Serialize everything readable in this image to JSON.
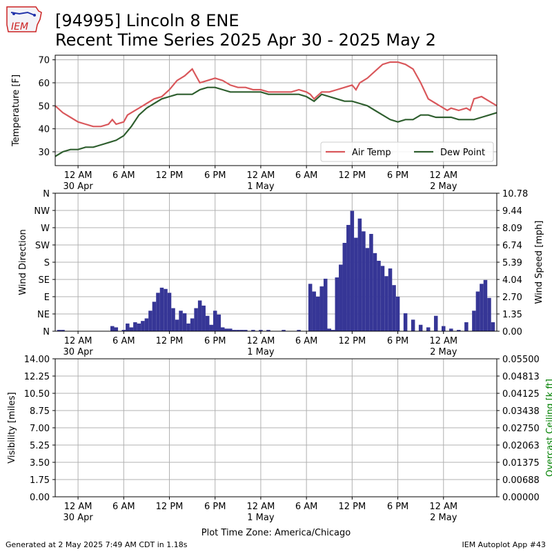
{
  "header": {
    "title_line1": "[94995] Lincoln 8 ENE",
    "title_line2": "Recent Time Series 2025 Apr 30 - 2025 May 2",
    "logo_text": "IEM"
  },
  "footer": {
    "generated": "Generated at 2 May 2025 7:49 AM CDT in 1.18s",
    "app": "IEM Autoplot App #43",
    "timezone_label": "Plot Time Zone: America/Chicago"
  },
  "colors": {
    "air_temp": "#d9575b",
    "dew_point": "#2e5e2e",
    "wind_bars": "#363696",
    "ceiling_axis": "#008000",
    "grid": "#b0b0b0"
  },
  "chart_data": [
    {
      "type": "line",
      "id": "temperature",
      "ylabel": "Temperature [F]",
      "ylim": [
        24,
        72
      ],
      "yticks": [
        30,
        40,
        50,
        60,
        70
      ],
      "x_unit": "hours since 2025-04-29 21:00",
      "xlim": [
        21,
        79
      ],
      "xticks": [
        {
          "x": 24,
          "label": "12 AM",
          "date": "30 Apr"
        },
        {
          "x": 30,
          "label": "6 AM",
          "date": ""
        },
        {
          "x": 36,
          "label": "12 PM",
          "date": ""
        },
        {
          "x": 42,
          "label": "6 PM",
          "date": ""
        },
        {
          "x": 48,
          "label": "12 AM",
          "date": "1 May"
        },
        {
          "x": 54,
          "label": "6 AM",
          "date": ""
        },
        {
          "x": 60,
          "label": "12 PM",
          "date": ""
        },
        {
          "x": 66,
          "label": "6 PM",
          "date": ""
        },
        {
          "x": 72,
          "label": "12 AM",
          "date": "2 May"
        }
      ],
      "grid": true,
      "legend": "lower-right",
      "series": [
        {
          "name": "Air Temp",
          "x": [
            21,
            22,
            23,
            24,
            25,
            26,
            27,
            28,
            28.5,
            29,
            30,
            30.5,
            31,
            32,
            33,
            34,
            35,
            36,
            37,
            38,
            39,
            39.5,
            40,
            41,
            42,
            43,
            44,
            45,
            46,
            47,
            48,
            49,
            50,
            51,
            52,
            53,
            54,
            54.5,
            55,
            56,
            57,
            58,
            59,
            60,
            60.5,
            61,
            62,
            63,
            64,
            65,
            66,
            67,
            68,
            69,
            70,
            71,
            72,
            72.5,
            73,
            74,
            75,
            75.5,
            76,
            77,
            78,
            79
          ],
          "y": [
            50,
            47,
            45,
            43,
            42,
            41,
            41,
            42,
            44,
            42,
            43,
            46,
            47,
            49,
            51,
            53,
            54,
            57,
            61,
            63,
            66,
            63,
            60,
            61,
            62,
            61,
            59,
            58,
            58,
            57,
            57,
            56,
            56,
            56,
            56,
            57,
            56,
            55,
            53,
            56,
            56,
            57,
            58,
            59,
            57,
            60,
            62,
            65,
            68,
            69,
            69,
            68,
            66,
            60,
            53,
            51,
            49,
            48,
            49,
            48,
            49,
            48,
            53,
            54,
            52,
            50
          ]
        },
        {
          "name": "Dew Point",
          "x": [
            21,
            22,
            23,
            24,
            25,
            26,
            27,
            28,
            29,
            30,
            31,
            32,
            33,
            34,
            35,
            36,
            37,
            38,
            39,
            40,
            41,
            42,
            43,
            44,
            45,
            46,
            47,
            48,
            49,
            50,
            51,
            52,
            53,
            54,
            55,
            56,
            57,
            58,
            59,
            60,
            61,
            62,
            63,
            64,
            65,
            66,
            67,
            68,
            69,
            70,
            71,
            72,
            73,
            74,
            75,
            76,
            77,
            78,
            79
          ],
          "y": [
            28,
            30,
            31,
            31,
            32,
            32,
            33,
            34,
            35,
            37,
            41,
            46,
            49,
            51,
            53,
            54,
            55,
            55,
            55,
            57,
            58,
            58,
            57,
            56,
            56,
            56,
            56,
            56,
            55,
            55,
            55,
            55,
            55,
            54,
            52,
            55,
            54,
            53,
            52,
            52,
            51,
            50,
            48,
            46,
            44,
            43,
            44,
            44,
            46,
            46,
            45,
            45,
            45,
            44,
            44,
            44,
            45,
            46,
            47
          ]
        }
      ]
    },
    {
      "type": "bar",
      "id": "wind",
      "ylabel": "Wind Direction",
      "ylabel_right": "Wind Speed [mph]",
      "ylim": [
        0,
        360
      ],
      "direction_ticks": [
        {
          "deg": 0,
          "label": "N"
        },
        {
          "deg": 45,
          "label": "NE"
        },
        {
          "deg": 90,
          "label": "E"
        },
        {
          "deg": 135,
          "label": "SE"
        },
        {
          "deg": 180,
          "label": "S"
        },
        {
          "deg": 225,
          "label": "SW"
        },
        {
          "deg": 270,
          "label": "W"
        },
        {
          "deg": 315,
          "label": "NW"
        },
        {
          "deg": 360,
          "label": "N"
        }
      ],
      "ylim_right": [
        0,
        10.78
      ],
      "speed_ticks": [
        "0.00",
        "1.35",
        "2.70",
        "4.04",
        "5.39",
        "6.74",
        "8.09",
        "9.44",
        "10.78"
      ],
      "bar_series_name": "Wind Speed",
      "x": [
        21.5,
        22,
        28.5,
        29,
        30,
        30.5,
        31,
        31.5,
        32,
        32.5,
        33,
        33.5,
        34,
        34.5,
        35,
        35.5,
        36,
        36.5,
        37,
        37.5,
        38,
        38.5,
        39,
        39.5,
        40,
        40.5,
        41,
        41.5,
        42,
        42.5,
        43,
        43.5,
        44,
        44.5,
        45,
        45.5,
        46,
        47,
        48,
        49,
        51,
        53,
        54.5,
        55,
        55.5,
        56,
        56.5,
        57,
        57.5,
        58,
        58.5,
        59,
        59.5,
        60,
        60.5,
        61,
        61.5,
        62,
        62.5,
        63,
        63.5,
        64,
        64.5,
        65,
        65.5,
        66,
        67,
        68,
        69,
        70,
        71,
        72,
        73,
        74,
        75,
        76,
        76.5,
        77,
        77.5,
        78,
        78.5
      ],
      "values": [
        0.1,
        0.1,
        0.4,
        0.3,
        0.1,
        0.6,
        0.3,
        0.7,
        0.6,
        0.8,
        1.0,
        1.6,
        2.3,
        3.0,
        3.4,
        3.3,
        3.0,
        1.8,
        0.9,
        1.6,
        1.4,
        0.6,
        1.0,
        1.8,
        2.4,
        2.0,
        1.2,
        0.5,
        1.6,
        1.3,
        0.3,
        0.2,
        0.2,
        0.1,
        0.1,
        0.1,
        0.1,
        0.1,
        0.1,
        0.1,
        0.1,
        0.1,
        3.7,
        3.1,
        2.7,
        3.5,
        4.1,
        0.2,
        0.1,
        4.2,
        5.2,
        6.9,
        8.3,
        9.4,
        7.3,
        8.8,
        7.8,
        6.5,
        7.6,
        6.1,
        5.5,
        5.1,
        4.3,
        4.9,
        3.6,
        2.7,
        1.4,
        0.9,
        0.5,
        0.3,
        1.2,
        0.4,
        0.2,
        0.1,
        0.7,
        1.6,
        3.1,
        3.7,
        4.0,
        2.6,
        0.7
      ]
    },
    {
      "type": "line",
      "id": "visibility",
      "ylabel": "Visibility [miles]",
      "ylabel_right": "Overcast Ceiling [k ft]",
      "ylim": [
        0,
        14
      ],
      "yticks": [
        "0.00",
        "1.75",
        "3.50",
        "5.25",
        "7.00",
        "8.75",
        "10.50",
        "12.25",
        "14.00"
      ],
      "ylim_right": [
        0,
        0.055
      ],
      "yticks_right": [
        "0.00000",
        "0.00688",
        "0.01375",
        "0.02063",
        "0.02750",
        "0.03438",
        "0.04125",
        "0.04813",
        "0.05500"
      ],
      "series": []
    }
  ]
}
